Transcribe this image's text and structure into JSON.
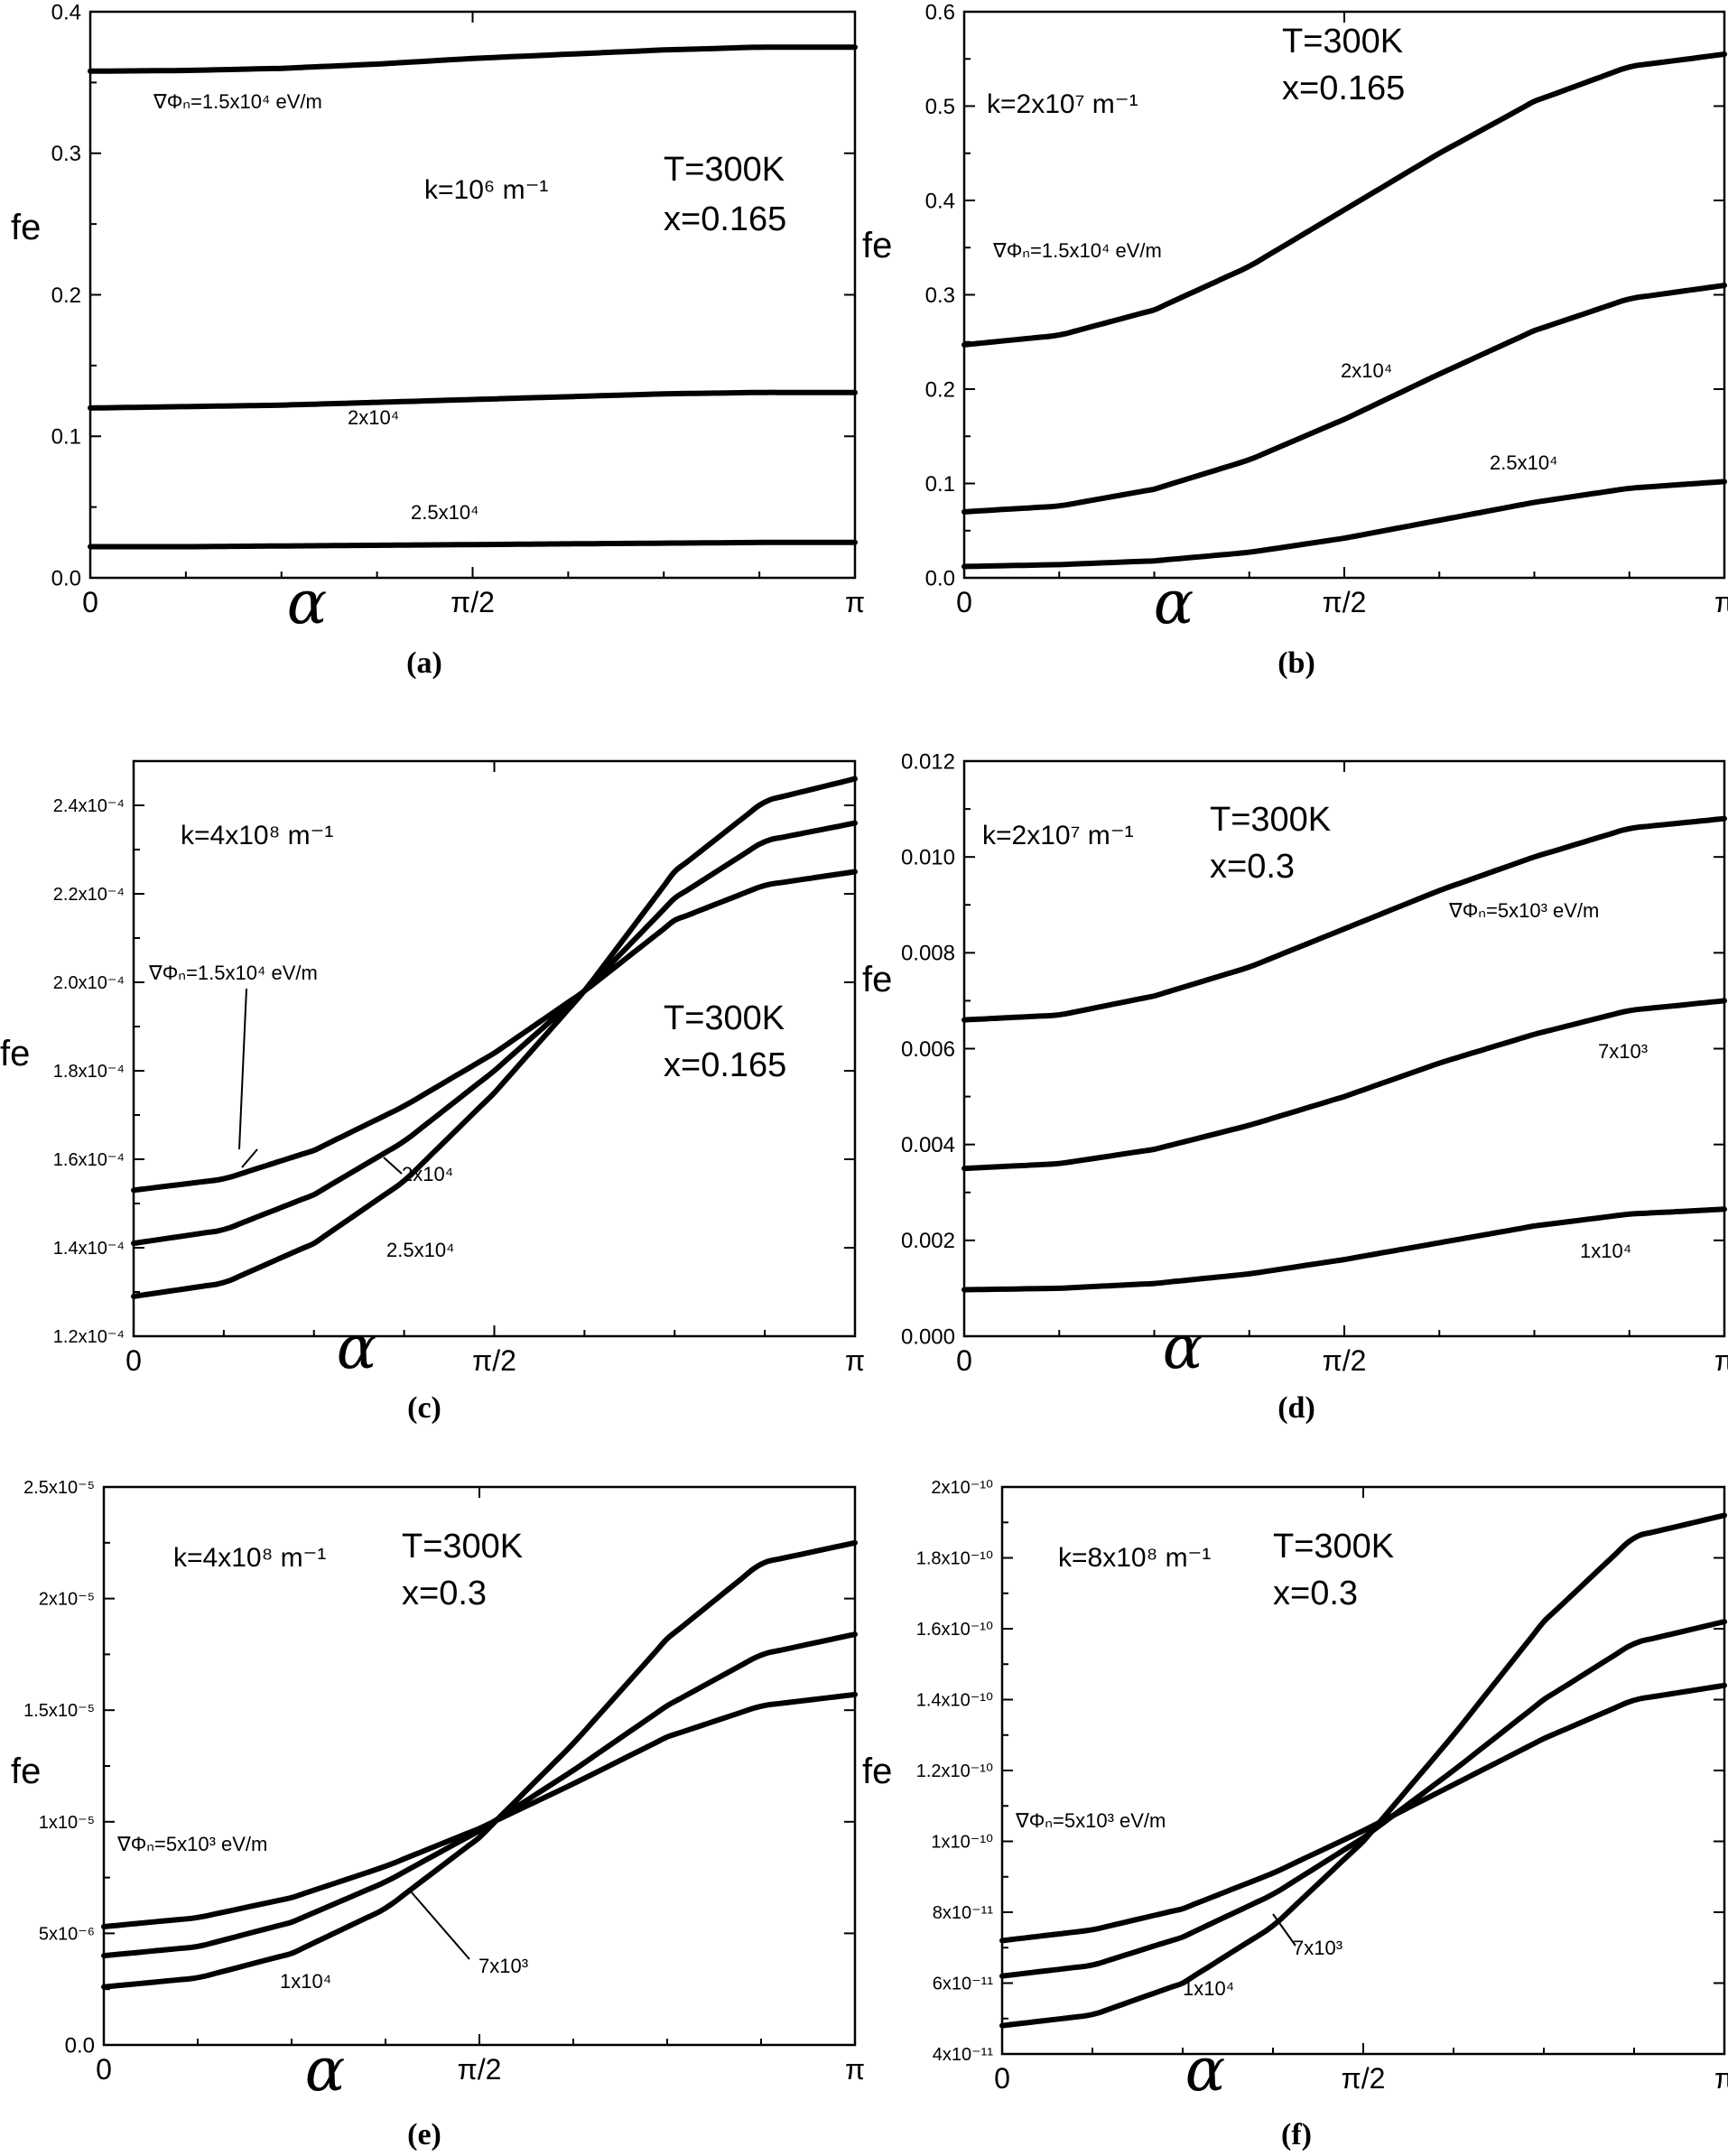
{
  "chart_data": [
    {
      "type": "line",
      "caption": "(a)",
      "xlabel": "α",
      "ylabel": "fe",
      "x_tick_labels": [
        "0",
        "π/2",
        "π"
      ],
      "ylim": [
        0,
        0.4
      ],
      "y_ticks": [
        {
          "value": 0.0,
          "label": "0.0"
        },
        {
          "value": 0.1,
          "label": "0.1"
        },
        {
          "value": 0.2,
          "label": "0.2"
        },
        {
          "value": 0.3,
          "label": "0.3"
        },
        {
          "value": 0.4,
          "label": "0.4"
        }
      ],
      "annotations": [
        "k=10⁶ m⁻¹",
        "T=300K",
        "x=0.165"
      ],
      "x_fraction": [
        0,
        0.125,
        0.25,
        0.375,
        0.5,
        0.625,
        0.75,
        0.875,
        1
      ],
      "series": [
        {
          "name": "∇Φₙ=1.5x10⁴ eV/m",
          "values": [
            0.358,
            0.3585,
            0.36,
            0.363,
            0.367,
            0.37,
            0.373,
            0.375,
            0.375
          ]
        },
        {
          "name": "2x10⁴",
          "values": [
            0.12,
            0.121,
            0.122,
            0.124,
            0.126,
            0.128,
            0.13,
            0.131,
            0.131
          ]
        },
        {
          "name": "2.5x10⁴",
          "values": [
            0.022,
            0.022,
            0.0225,
            0.023,
            0.0235,
            0.024,
            0.0245,
            0.025,
            0.025
          ]
        }
      ]
    },
    {
      "type": "line",
      "caption": "(b)",
      "xlabel": "α",
      "ylabel": "fe",
      "x_tick_labels": [
        "0",
        "π/2",
        "π"
      ],
      "ylim": [
        0,
        0.6
      ],
      "y_ticks": [
        {
          "value": 0.0,
          "label": "0.0"
        },
        {
          "value": 0.1,
          "label": "0.1"
        },
        {
          "value": 0.2,
          "label": "0.2"
        },
        {
          "value": 0.3,
          "label": "0.3"
        },
        {
          "value": 0.4,
          "label": "0.4"
        },
        {
          "value": 0.5,
          "label": "0.5"
        },
        {
          "value": 0.6,
          "label": "0.6"
        }
      ],
      "annotations": [
        "k=2x10⁷ m⁻¹",
        "T=300K",
        "x=0.165"
      ],
      "x_fraction": [
        0,
        0.125,
        0.25,
        0.375,
        0.5,
        0.625,
        0.75,
        0.875,
        1
      ],
      "series": [
        {
          "name": "∇Φₙ=1.5x10⁴ eV/m",
          "values": [
            0.247,
            0.257,
            0.284,
            0.33,
            0.39,
            0.45,
            0.505,
            0.542,
            0.555
          ]
        },
        {
          "name": "2x10⁴",
          "values": [
            0.07,
            0.076,
            0.094,
            0.125,
            0.168,
            0.216,
            0.262,
            0.296,
            0.31
          ]
        },
        {
          "name": "2.5x10⁴",
          "values": [
            0.012,
            0.014,
            0.018,
            0.027,
            0.042,
            0.061,
            0.08,
            0.095,
            0.102
          ]
        }
      ]
    },
    {
      "type": "line",
      "caption": "(c)",
      "xlabel": "α",
      "ylabel": "fe",
      "x_tick_labels": [
        "0",
        "π/2",
        "π"
      ],
      "ylim": [
        1.2,
        2.5
      ],
      "y_scale_note": "values in units of 10⁻⁴",
      "y_ticks": [
        {
          "value": 1.2,
          "label": "1.2x10⁻⁴"
        },
        {
          "value": 1.4,
          "label": "1.4x10⁻⁴"
        },
        {
          "value": 1.6,
          "label": "1.6x10⁻⁴"
        },
        {
          "value": 1.8,
          "label": "1.8x10⁻⁴"
        },
        {
          "value": 2.0,
          "label": "2.0x10⁻⁴"
        },
        {
          "value": 2.2,
          "label": "2.2x10⁻⁴"
        },
        {
          "value": 2.4,
          "label": "2.4x10⁻⁴"
        }
      ],
      "annotations": [
        "k=4x10⁸ m⁻¹",
        "T=300K",
        "x=0.165"
      ],
      "x_fraction": [
        0,
        0.125,
        0.25,
        0.375,
        0.5,
        0.625,
        0.75,
        0.875,
        1
      ],
      "series": [
        {
          "name": "∇Φₙ=1.5x10⁴ eV/m",
          "values": [
            1.53,
            1.555,
            1.62,
            1.72,
            1.84,
            1.98,
            2.14,
            2.22,
            2.25
          ]
        },
        {
          "name": "2x10⁴",
          "values": [
            1.41,
            1.44,
            1.52,
            1.64,
            1.8,
            1.98,
            2.19,
            2.32,
            2.36
          ]
        },
        {
          "name": "2.5x10⁴",
          "values": [
            1.29,
            1.32,
            1.41,
            1.55,
            1.75,
            1.98,
            2.25,
            2.41,
            2.46
          ]
        }
      ]
    },
    {
      "type": "line",
      "caption": "(d)",
      "xlabel": "α",
      "ylabel": "fe",
      "x_tick_labels": [
        "0",
        "π/2",
        "π"
      ],
      "ylim": [
        0,
        0.012
      ],
      "y_ticks": [
        {
          "value": 0.0,
          "label": "0.000"
        },
        {
          "value": 0.002,
          "label": "0.002"
        },
        {
          "value": 0.004,
          "label": "0.004"
        },
        {
          "value": 0.006,
          "label": "0.006"
        },
        {
          "value": 0.008,
          "label": "0.008"
        },
        {
          "value": 0.01,
          "label": "0.010"
        },
        {
          "value": 0.012,
          "label": "0.012"
        }
      ],
      "annotations": [
        "k=2x10⁷ m⁻¹",
        "T=300K",
        "x=0.3"
      ],
      "x_fraction": [
        0,
        0.125,
        0.25,
        0.375,
        0.5,
        0.625,
        0.75,
        0.875,
        1
      ],
      "series": [
        {
          "name": "∇Φₙ=5x10³ eV/m",
          "values": [
            0.0066,
            0.0067,
            0.0071,
            0.0077,
            0.0085,
            0.0093,
            0.01,
            0.0106,
            0.0108
          ]
        },
        {
          "name": "7x10³",
          "values": [
            0.0035,
            0.0036,
            0.0039,
            0.0044,
            0.005,
            0.0057,
            0.0063,
            0.0068,
            0.007
          ]
        },
        {
          "name": "1x10⁴",
          "values": [
            0.00097,
            0.001,
            0.0011,
            0.0013,
            0.0016,
            0.00195,
            0.0023,
            0.00255,
            0.00265
          ]
        }
      ]
    },
    {
      "type": "line",
      "caption": "(e)",
      "xlabel": "α",
      "ylabel": "fe",
      "x_tick_labels": [
        "0",
        "π/2",
        "π"
      ],
      "ylim": [
        0,
        2.5
      ],
      "y_scale_note": "values in units of 10⁻⁵",
      "y_ticks": [
        {
          "value": 0.0,
          "label": "0.0"
        },
        {
          "value": 0.5,
          "label": "5x10⁻⁶"
        },
        {
          "value": 1.0,
          "label": "1x10⁻⁵"
        },
        {
          "value": 1.5,
          "label": "1.5x10⁻⁵"
        },
        {
          "value": 2.0,
          "label": "2x10⁻⁵"
        },
        {
          "value": 2.5,
          "label": "2.5x10⁻⁵"
        }
      ],
      "annotations": [
        "k=4x10⁸ m⁻¹",
        "T=300K",
        "x=0.3"
      ],
      "x_fraction": [
        0,
        0.125,
        0.25,
        0.375,
        0.5,
        0.625,
        0.75,
        0.875,
        1
      ],
      "series": [
        {
          "name": "∇Φₙ=5x10³ eV/m",
          "values": [
            0.53,
            0.57,
            0.66,
            0.8,
            0.97,
            1.17,
            1.38,
            1.52,
            1.57
          ]
        },
        {
          "name": "7x10³",
          "values": [
            0.4,
            0.44,
            0.55,
            0.73,
            0.96,
            1.23,
            1.52,
            1.75,
            1.84
          ]
        },
        {
          "name": "1x10⁴",
          "values": [
            0.26,
            0.3,
            0.41,
            0.61,
            0.93,
            1.35,
            1.82,
            2.16,
            2.25
          ]
        }
      ]
    },
    {
      "type": "line",
      "caption": "(f)",
      "xlabel": "α",
      "ylabel": "fe",
      "x_tick_labels": [
        "0",
        "π/2",
        "π"
      ],
      "ylim": [
        4,
        20
      ],
      "y_scale_note": "values in units of 10⁻¹¹",
      "y_ticks": [
        {
          "value": 4,
          "label": "4x10⁻¹¹"
        },
        {
          "value": 6,
          "label": "6x10⁻¹¹"
        },
        {
          "value": 8,
          "label": "8x10⁻¹¹"
        },
        {
          "value": 10,
          "label": "1x10⁻¹⁰"
        },
        {
          "value": 12,
          "label": "1.2x10⁻¹⁰"
        },
        {
          "value": 14,
          "label": "1.4x10⁻¹⁰"
        },
        {
          "value": 16,
          "label": "1.6x10⁻¹⁰"
        },
        {
          "value": 18,
          "label": "1.8x10⁻¹⁰"
        },
        {
          "value": 20,
          "label": "2x10⁻¹⁰"
        }
      ],
      "annotations": [
        "k=8x10⁸ m⁻¹",
        "T=300K",
        "x=0.3"
      ],
      "x_fraction": [
        0,
        0.125,
        0.25,
        0.375,
        0.5,
        0.625,
        0.75,
        0.875,
        1
      ],
      "series": [
        {
          "name": "∇Φₙ=5x10³ eV/m",
          "values": [
            7.2,
            7.5,
            8.1,
            9.1,
            10.3,
            11.6,
            12.9,
            14.0,
            14.4
          ]
        },
        {
          "name": "7x10³",
          "values": [
            6.2,
            6.5,
            7.3,
            8.5,
            10.1,
            12.0,
            14.0,
            15.6,
            16.2
          ]
        },
        {
          "name": "1x10⁴",
          "values": [
            4.8,
            5.1,
            6.0,
            7.6,
            10.0,
            13.0,
            16.2,
            18.6,
            19.2
          ]
        }
      ]
    }
  ]
}
